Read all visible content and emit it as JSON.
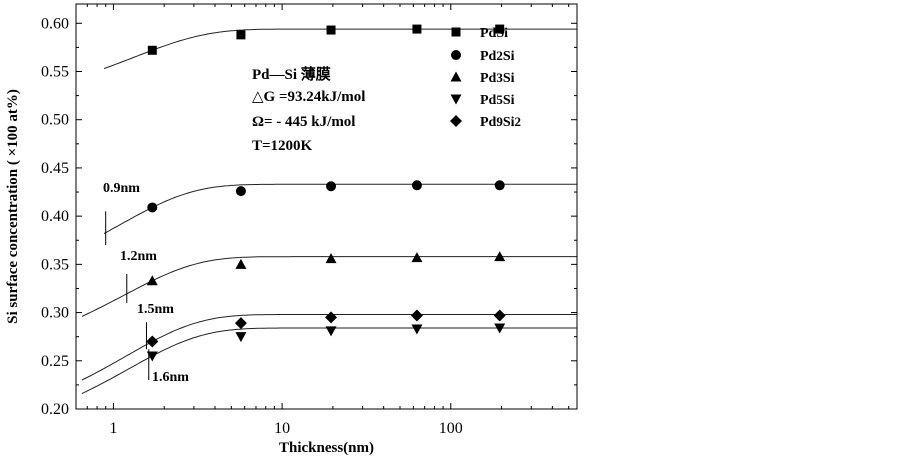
{
  "chart_data": {
    "type": "scatter",
    "title": "",
    "xlabel": "Thickness(nm)",
    "ylabel": "Si surface concentration ( ×100 at%)",
    "xscale": "log",
    "xlim": [
      0.6,
      560
    ],
    "ylim": [
      0.2,
      0.62
    ],
    "x_ticks": [
      1,
      10,
      100
    ],
    "x_tick_labels": [
      "1",
      "10",
      "100"
    ],
    "y_ticks": [
      0.2,
      0.25,
      0.3,
      0.35,
      0.4,
      0.45,
      0.5,
      0.55,
      0.6
    ],
    "y_tick_labels": [
      "0.20",
      "0.25",
      "0.30",
      "0.35",
      "0.40",
      "0.45",
      "0.50",
      "0.55",
      "0.60"
    ],
    "grid": false,
    "legend_position": "top-right",
    "series": [
      {
        "name": "PdSi",
        "marker": "square",
        "x": [
          1.7,
          5.7,
          19.5,
          63,
          195
        ],
        "y": [
          0.572,
          0.588,
          0.593,
          0.594,
          0.594
        ],
        "curve": {
          "x_start": 0.88,
          "y_start": 0.553,
          "plateau": 0.594
        }
      },
      {
        "name": "Pd2Si",
        "marker": "circle",
        "x": [
          1.7,
          5.7,
          19.5,
          63,
          195
        ],
        "y": [
          0.409,
          0.426,
          0.431,
          0.432,
          0.432
        ],
        "curve": {
          "x_start": 0.88,
          "y_start": 0.382,
          "plateau": 0.433
        }
      },
      {
        "name": "Pd3Si",
        "marker": "triangle-up",
        "x": [
          1.7,
          5.7,
          19.5,
          63,
          195
        ],
        "y": [
          0.333,
          0.35,
          0.356,
          0.357,
          0.358
        ],
        "curve": {
          "x_start": 0.65,
          "y_start": 0.296,
          "plateau": 0.358
        }
      },
      {
        "name": "Pd5Si",
        "marker": "triangle-down",
        "x": [
          1.7,
          5.7,
          19.5,
          63,
          195
        ],
        "y": [
          0.255,
          0.275,
          0.281,
          0.283,
          0.284
        ],
        "curve": {
          "x_start": 0.65,
          "y_start": 0.216,
          "plateau": 0.284
        }
      },
      {
        "name": "Pd9Si2",
        "marker": "diamond",
        "x": [
          1.7,
          5.7,
          19.5,
          63,
          195
        ],
        "y": [
          0.27,
          0.289,
          0.295,
          0.297,
          0.297
        ],
        "curve": {
          "x_start": 0.65,
          "y_start": 0.23,
          "plateau": 0.298
        }
      }
    ],
    "legend_entries": [
      {
        "main": "PdSi",
        "sub": "",
        "tail": ""
      },
      {
        "main": "Pd",
        "sub": "2",
        "tail": "Si"
      },
      {
        "main": "Pd",
        "sub": "3",
        "tail": "Si"
      },
      {
        "main": "Pd",
        "sub": "5",
        "tail": "Si"
      },
      {
        "main": "Pd",
        "sub": "9",
        "tail": "Si",
        "sub2": "2"
      }
    ],
    "annotations": {
      "system": "Pd—Si 薄膜",
      "delta_g": "△G =93.24kJ/mol",
      "omega": "Ω= - 445 kJ/mol",
      "temperature": "T=1200K"
    },
    "thickness_markers": [
      {
        "label": "0.9nm",
        "x": 0.9,
        "y_low": 0.37,
        "y_high": 0.405
      },
      {
        "label": "1.2nm",
        "x": 1.2,
        "y_low": 0.31,
        "y_high": 0.34
      },
      {
        "label": "1.5nm",
        "x": 1.57,
        "y_low": 0.262,
        "y_high": 0.29
      },
      {
        "label": "1.6nm",
        "x": 1.62,
        "y_low": 0.23,
        "y_high": 0.262
      }
    ]
  }
}
